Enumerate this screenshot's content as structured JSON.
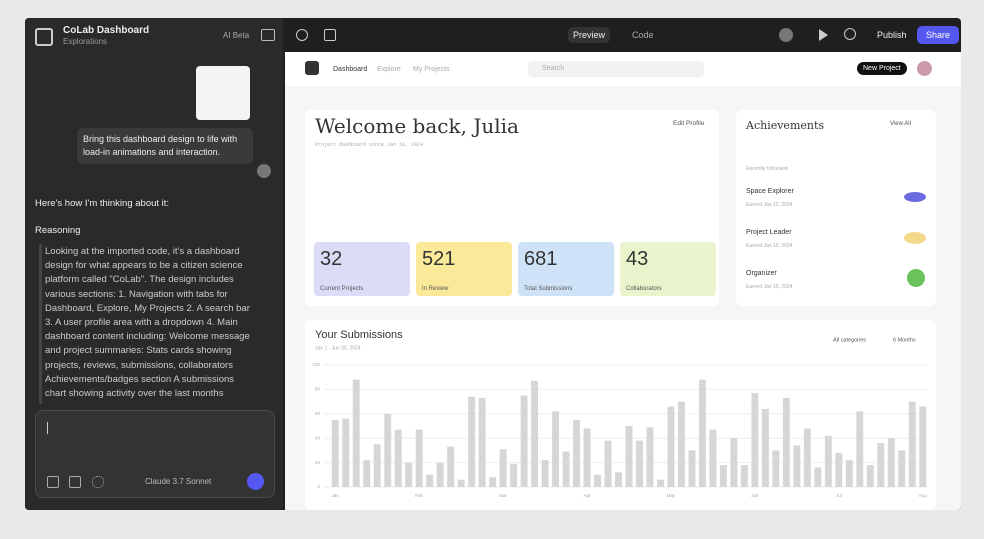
{
  "app": {
    "title": "CoLab Dashboard",
    "subtitle": "Explorations",
    "badge": "AI Beta"
  },
  "chat": {
    "user_message": "Bring this dashboard design to life with load-in animations and interaction.",
    "intro": "Here's how I'm thinking about it:",
    "reasoning_label": "Reasoning",
    "reasoning": "Looking at the imported code, it's a dashboard design for what appears to be a citizen science platform called \"CoLab\". The design includes various sections: 1. Navigation with tabs for Dashboard, Explore, My Projects 2. A search bar 3. A user profile area with a dropdown 4. Main dashboard content including: Welcome message and project summaries: Stats cards showing projects, reviews, submissions, collaborators Achievements/badges section A submissions chart showing activity over the last months",
    "model": "Claude 3.7 Sonnet"
  },
  "toolbar": {
    "tabs": [
      "Preview",
      "Code"
    ],
    "publish": "Publish",
    "share": "Share"
  },
  "preview": {
    "nav": [
      "Dashboard",
      "Explore",
      "My Projects"
    ],
    "search": "Search",
    "new_project": "New Project",
    "welcome": "Welcome back, Julia",
    "welcome_sub": "Project dashboard since Jan 10, 2024",
    "edit_profile": "Edit Profile",
    "stats": [
      {
        "value": 32,
        "label": "Current Projects",
        "color": "#dcdcf7"
      },
      {
        "value": 521,
        "label": "In Review",
        "color": "#fbe99a"
      },
      {
        "value": 681,
        "label": "Total Submissions",
        "color": "#cfe3f8"
      },
      {
        "value": 43,
        "label": "Collaborators",
        "color": "#e9f4cc"
      }
    ],
    "achievements": {
      "title": "Achievements",
      "view_all": "View All",
      "section": "Recently Unlocked",
      "items": [
        {
          "name": "Space Explorer",
          "date": "Earned Jan 12, 2024"
        },
        {
          "name": "Project Leader",
          "date": "Earned Jan 10, 2024"
        },
        {
          "name": "Organizer",
          "date": "Earned Jan 10, 2024"
        }
      ]
    }
  },
  "chart_data": {
    "type": "bar",
    "title": "Your Submissions",
    "subtitle": "Jan 1 - Jun 30, 2024",
    "filters": [
      "All categories",
      "6 Months"
    ],
    "color": "#d6d6d6",
    "categories": [
      "Jan",
      null,
      null,
      null,
      null,
      null,
      null,
      null,
      "Feb",
      null,
      null,
      null,
      null,
      null,
      null,
      null,
      "Mar",
      null,
      null,
      null,
      null,
      null,
      null,
      null,
      "Apr",
      null,
      null,
      null,
      null,
      null,
      null,
      null,
      "May",
      null,
      null,
      null,
      null,
      null,
      null,
      null,
      "Jun",
      null,
      null,
      null,
      null,
      null,
      null,
      null,
      "Jul",
      null,
      null,
      null,
      null,
      null,
      null,
      null,
      "Aug"
    ],
    "values": [
      55,
      56,
      88,
      22,
      35,
      60,
      47,
      20,
      47,
      10,
      20,
      33,
      6,
      74,
      73,
      8,
      31,
      19,
      75,
      87,
      22,
      62,
      29,
      55,
      48,
      10,
      38,
      12,
      50,
      38,
      49,
      6,
      66,
      70,
      30,
      88,
      47,
      18,
      40,
      18,
      77,
      64,
      30,
      73,
      34,
      48,
      16,
      42,
      28,
      22,
      62,
      18,
      36,
      40,
      30,
      70,
      66
    ],
    "ylim": [
      0,
      100
    ],
    "yticks": [
      0,
      20,
      40,
      60,
      80,
      100
    ],
    "grid": true
  }
}
